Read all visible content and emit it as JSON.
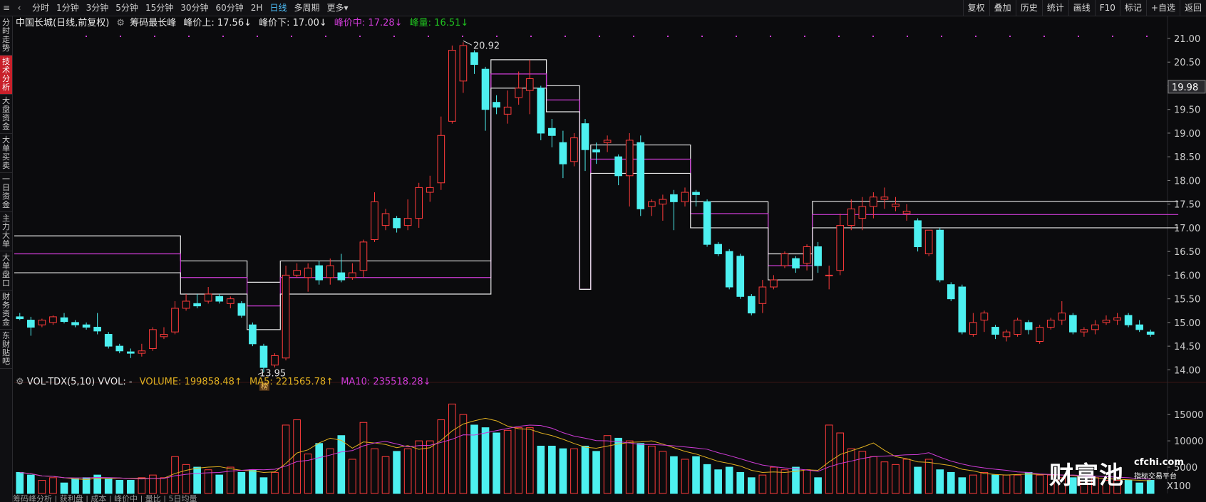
{
  "topbar": {
    "periods": [
      "分时",
      "1分钟",
      "3分钟",
      "5分钟",
      "15分钟",
      "30分钟",
      "60分钟",
      "2H",
      "日线",
      "多周期",
      "更多▾"
    ],
    "active_period": "日线",
    "tools": [
      "复权",
      "叠加",
      "历史",
      "统计",
      "画线",
      "F10",
      "标记",
      "+自选",
      "返回"
    ]
  },
  "sidebar": {
    "items": [
      "分时走势",
      "技术分析",
      "大盘资金",
      "大单买卖",
      "一日资金",
      "主力大单",
      "大单盘口",
      "财务资金",
      "东财贴吧"
    ],
    "active": "技术分析"
  },
  "header": {
    "stock": "中国长城(日线,前复权)",
    "indicator": "筹码最长峰",
    "peak_up": "峰价上: 17.56↓",
    "peak_down": "峰价下: 17.00↓",
    "peak_mid": "峰价中: 17.28↓",
    "peak_vol": "峰量: 16.51↓"
  },
  "colors": {
    "up": "#ff3b3b",
    "down": "#4df0f0",
    "upper": "#e8e8e8",
    "mid": "#d03cd8",
    "ma5": "#e0b020",
    "ma10": "#d03cd8",
    "bg": "#0b0b0d",
    "accent_green": "#20c020"
  },
  "price_axis": {
    "ticks": [
      "21.00",
      "20.50",
      "20.00",
      "19.50",
      "19.00",
      "18.50",
      "18.00",
      "17.50",
      "17.00",
      "16.50",
      "16.00",
      "15.50",
      "15.00",
      "14.50",
      "14.00"
    ],
    "current": "19.98",
    "high_label": "20.92",
    "low_label": "13.95",
    "low_marker": "榜"
  },
  "volume": {
    "title_name": "VOL-TDX(5,10) VVOL: -",
    "volume": "VOLUME: 199858.48↑",
    "ma5": "MA5: 221565.78↑",
    "ma10": "MA10: 235518.28↓",
    "ticks": [
      "15000",
      "10000",
      "5000"
    ],
    "units": "X100"
  },
  "logo": {
    "name": "财富池",
    "site": "cfchi.com",
    "tagline": "指标交易平台"
  },
  "bottom_strip": "筹码峰分析 | 获利盘 | 成本 | 峰价中 | 量比 | 5日均量",
  "chart_data": {
    "type": "candlestick",
    "price_range": [
      13.75,
      21.15
    ],
    "candles": [
      [
        15.12,
        15.08,
        15.2,
        15.05
      ],
      [
        15.05,
        14.9,
        15.12,
        14.72
      ],
      [
        14.95,
        15.05,
        15.08,
        14.9
      ],
      [
        15.0,
        15.12,
        15.15,
        14.95
      ],
      [
        15.1,
        15.02,
        15.2,
        14.98
      ],
      [
        15.0,
        14.95,
        15.05,
        14.9
      ],
      [
        14.95,
        14.9,
        15.0,
        14.85
      ],
      [
        14.9,
        14.82,
        15.2,
        14.75
      ],
      [
        14.75,
        14.5,
        14.8,
        14.45
      ],
      [
        14.5,
        14.4,
        14.55,
        14.35
      ],
      [
        14.38,
        14.35,
        14.45,
        14.25
      ],
      [
        14.35,
        14.4,
        14.55,
        14.28
      ],
      [
        14.45,
        14.85,
        14.9,
        14.4
      ],
      [
        14.7,
        14.75,
        14.9,
        14.65
      ],
      [
        14.8,
        15.3,
        15.45,
        14.75
      ],
      [
        15.3,
        15.45,
        15.6,
        15.25
      ],
      [
        15.4,
        15.35,
        15.6,
        15.3
      ],
      [
        15.45,
        15.6,
        15.75,
        15.4
      ],
      [
        15.55,
        15.45,
        15.6,
        15.4
      ],
      [
        15.4,
        15.5,
        15.55,
        15.3
      ],
      [
        15.4,
        15.15,
        15.45,
        15.1
      ],
      [
        14.95,
        14.55,
        15.0,
        14.5
      ],
      [
        14.5,
        14.05,
        14.55,
        13.95
      ],
      [
        14.1,
        14.3,
        14.35,
        14.05
      ],
      [
        14.25,
        16.0,
        16.2,
        14.2
      ],
      [
        16.0,
        16.1,
        16.25,
        15.95
      ],
      [
        15.95,
        16.15,
        16.25,
        15.65
      ],
      [
        16.2,
        15.9,
        16.3,
        15.8
      ],
      [
        15.95,
        16.2,
        16.35,
        15.8
      ],
      [
        16.05,
        15.9,
        16.45,
        15.85
      ],
      [
        15.95,
        16.05,
        16.25,
        15.9
      ],
      [
        16.1,
        16.7,
        16.75,
        15.95
      ],
      [
        16.75,
        17.55,
        17.75,
        16.7
      ],
      [
        17.05,
        17.3,
        17.4,
        16.95
      ],
      [
        17.2,
        17.0,
        17.25,
        16.9
      ],
      [
        17.05,
        17.2,
        17.6,
        16.95
      ],
      [
        17.2,
        17.85,
        17.95,
        17.0
      ],
      [
        17.75,
        17.85,
        18.1,
        17.55
      ],
      [
        17.95,
        18.95,
        19.35,
        17.8
      ],
      [
        19.25,
        20.75,
        20.85,
        19.2
      ],
      [
        20.1,
        20.85,
        20.92,
        19.85
      ],
      [
        20.7,
        20.45,
        20.75,
        20.25
      ],
      [
        20.35,
        19.5,
        20.4,
        19.05
      ],
      [
        19.65,
        19.55,
        19.8,
        19.4
      ],
      [
        19.4,
        19.55,
        19.9,
        19.2
      ],
      [
        19.75,
        19.95,
        20.3,
        19.6
      ],
      [
        19.9,
        20.15,
        20.55,
        19.4
      ],
      [
        19.95,
        19.0,
        20.0,
        18.85
      ],
      [
        19.1,
        18.95,
        19.3,
        18.7
      ],
      [
        18.8,
        18.35,
        19.05,
        18.05
      ],
      [
        18.4,
        18.9,
        19.0,
        18.3
      ],
      [
        19.2,
        18.65,
        19.3,
        18.2
      ],
      [
        18.65,
        18.6,
        18.8,
        18.35
      ],
      [
        18.8,
        18.85,
        18.95,
        18.6
      ],
      [
        18.5,
        18.1,
        18.55,
        17.9
      ],
      [
        18.1,
        18.85,
        19.0,
        17.45
      ],
      [
        18.8,
        17.4,
        18.95,
        17.25
      ],
      [
        17.45,
        17.55,
        17.6,
        17.25
      ],
      [
        17.5,
        17.6,
        17.7,
        17.15
      ],
      [
        17.7,
        17.55,
        17.8,
        16.95
      ],
      [
        17.55,
        17.75,
        17.85,
        17.45
      ],
      [
        17.75,
        17.7,
        17.8,
        17.45
      ],
      [
        17.55,
        16.65,
        17.6,
        16.6
      ],
      [
        16.65,
        16.45,
        16.7,
        16.4
      ],
      [
        16.5,
        15.75,
        16.55,
        15.7
      ],
      [
        16.4,
        15.55,
        16.45,
        15.5
      ],
      [
        15.55,
        15.2,
        15.6,
        15.15
      ],
      [
        15.4,
        15.75,
        15.9,
        15.2
      ],
      [
        15.75,
        15.9,
        16.0,
        15.7
      ],
      [
        16.2,
        16.45,
        16.5,
        16.15
      ],
      [
        16.35,
        16.15,
        16.4,
        16.05
      ],
      [
        16.25,
        16.6,
        16.65,
        16.1
      ],
      [
        16.6,
        16.2,
        16.7,
        16.05
      ],
      [
        16.0,
        16.0,
        16.2,
        15.7
      ],
      [
        16.1,
        17.05,
        17.3,
        16.0
      ],
      [
        17.05,
        17.4,
        17.6,
        16.95
      ],
      [
        17.2,
        17.45,
        17.65,
        16.95
      ],
      [
        17.45,
        17.65,
        17.75,
        17.2
      ],
      [
        17.6,
        17.65,
        17.85,
        17.4
      ],
      [
        17.45,
        17.5,
        17.65,
        17.35
      ],
      [
        17.3,
        17.35,
        17.5,
        17.15
      ],
      [
        17.15,
        16.6,
        17.2,
        16.5
      ],
      [
        16.45,
        16.95,
        16.95,
        16.4
      ],
      [
        16.95,
        15.9,
        17.0,
        15.85
      ],
      [
        15.8,
        15.5,
        15.85,
        15.45
      ],
      [
        15.75,
        14.8,
        15.8,
        14.75
      ],
      [
        14.75,
        15.0,
        15.2,
        14.7
      ],
      [
        15.05,
        15.2,
        15.25,
        14.8
      ],
      [
        14.9,
        14.75,
        14.95,
        14.65
      ],
      [
        14.7,
        14.8,
        14.85,
        14.6
      ],
      [
        14.75,
        15.05,
        15.1,
        14.7
      ],
      [
        15.0,
        14.85,
        15.05,
        14.75
      ],
      [
        14.6,
        14.9,
        14.95,
        14.55
      ],
      [
        14.9,
        15.05,
        15.1,
        14.85
      ],
      [
        15.05,
        15.2,
        15.45,
        14.95
      ],
      [
        15.15,
        14.8,
        15.2,
        14.75
      ],
      [
        14.8,
        14.85,
        14.9,
        14.7
      ],
      [
        14.85,
        14.95,
        15.05,
        14.75
      ],
      [
        15.0,
        15.05,
        15.15,
        14.95
      ],
      [
        15.05,
        15.1,
        15.2,
        14.95
      ],
      [
        15.15,
        14.95,
        15.2,
        14.9
      ],
      [
        14.95,
        14.85,
        15.05,
        14.8
      ],
      [
        14.8,
        14.75,
        14.85,
        14.7
      ]
    ],
    "volume": [
      40,
      35,
      25,
      30,
      20,
      28,
      30,
      35,
      28,
      25,
      25,
      30,
      35,
      30,
      70,
      55,
      50,
      45,
      35,
      50,
      40,
      45,
      30,
      40,
      130,
      140,
      75,
      95,
      85,
      110,
      65,
      135,
      85,
      70,
      80,
      85,
      100,
      100,
      140,
      170,
      150,
      130,
      125,
      115,
      120,
      125,
      125,
      90,
      90,
      85,
      85,
      90,
      80,
      110,
      105,
      100,
      95,
      90,
      80,
      70,
      65,
      70,
      55,
      45,
      50,
      40,
      30,
      35,
      50,
      45,
      50,
      45,
      30,
      130,
      115,
      85,
      80,
      70,
      60,
      55,
      65,
      50,
      65,
      45,
      40,
      30,
      35,
      40,
      35,
      35,
      35,
      40,
      35,
      35,
      30,
      30,
      25,
      30,
      25,
      25,
      25,
      20,
      25
    ]
  }
}
